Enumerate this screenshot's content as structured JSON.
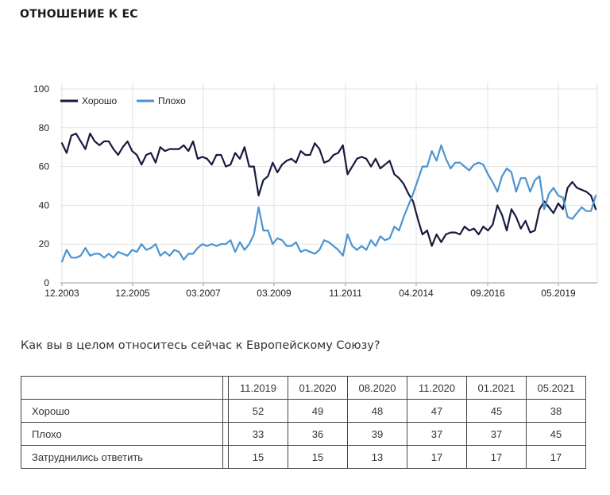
{
  "page_title": "ОТНОШЕНИЕ К ЕС",
  "question": "Как вы в целом относитесь сейчас к Европейскому Союзу?",
  "chart_data": {
    "type": "line",
    "x_tick_labels": [
      "12.2003",
      "12.2005",
      "03.2007",
      "03.2009",
      "11.2011",
      "04.2014",
      "09.2016",
      "05.2019"
    ],
    "y_ticks": [
      0,
      20,
      40,
      60,
      80,
      100
    ],
    "ylim": [
      0,
      100
    ],
    "grid": true,
    "legend_position": "top-left",
    "series": [
      {
        "name": "Хорошо",
        "color": "#171a3d",
        "values": [
          72,
          67,
          76,
          77,
          73,
          69,
          77,
          73,
          71,
          73,
          73,
          69,
          66,
          70,
          73,
          68,
          66,
          61,
          66,
          67,
          62,
          70,
          68,
          69,
          69,
          69,
          71,
          68,
          73,
          64,
          65,
          64,
          61,
          66,
          66,
          60,
          61,
          67,
          64,
          70,
          60,
          60,
          45,
          53,
          55,
          62,
          57,
          61,
          63,
          64,
          62,
          68,
          66,
          66,
          72,
          69,
          62,
          63,
          66,
          67,
          71,
          56,
          60,
          64,
          65,
          64,
          60,
          64,
          59,
          61,
          63,
          56,
          54,
          51,
          46,
          42,
          33,
          25,
          27,
          19,
          25,
          21,
          25,
          26,
          26,
          25,
          29,
          27,
          28,
          25,
          29,
          27,
          30,
          40,
          35,
          27,
          38,
          34,
          28,
          32,
          26,
          27,
          38,
          42,
          39,
          36,
          41,
          38,
          49,
          52,
          49,
          48,
          47,
          45,
          38
        ]
      },
      {
        "name": "Плохо",
        "color": "#4b94d1",
        "values": [
          11,
          17,
          13,
          13,
          14,
          18,
          14,
          15,
          15,
          13,
          15,
          13,
          16,
          15,
          14,
          17,
          16,
          20,
          17,
          18,
          20,
          14,
          16,
          14,
          17,
          16,
          12,
          15,
          15,
          18,
          20,
          19,
          20,
          19,
          20,
          20,
          22,
          16,
          21,
          17,
          20,
          25,
          39,
          27,
          27,
          20,
          23,
          22,
          19,
          19,
          21,
          16,
          17,
          16,
          15,
          17,
          22,
          21,
          19,
          17,
          14,
          25,
          19,
          17,
          19,
          17,
          22,
          19,
          24,
          22,
          23,
          29,
          27,
          34,
          40,
          46,
          53,
          60,
          60,
          68,
          63,
          71,
          64,
          59,
          62,
          62,
          60,
          58,
          61,
          62,
          61,
          56,
          52,
          47,
          55,
          59,
          57,
          47,
          54,
          54,
          47,
          53,
          55,
          38,
          46,
          49,
          45,
          44,
          34,
          33,
          36,
          39,
          37,
          37,
          45
        ]
      }
    ]
  },
  "table": {
    "columns": [
      "11.2019",
      "01.2020",
      "08.2020",
      "11.2020",
      "01.2021",
      "05.2021"
    ],
    "rows": [
      {
        "label": "Хорошо",
        "values": [
          "52",
          "49",
          "48",
          "47",
          "45",
          "38"
        ]
      },
      {
        "label": "Плохо",
        "values": [
          "33",
          "36",
          "39",
          "37",
          "37",
          "45"
        ]
      },
      {
        "label": "Затруднились ответить",
        "values": [
          "15",
          "15",
          "13",
          "17",
          "17",
          "17"
        ]
      }
    ]
  }
}
